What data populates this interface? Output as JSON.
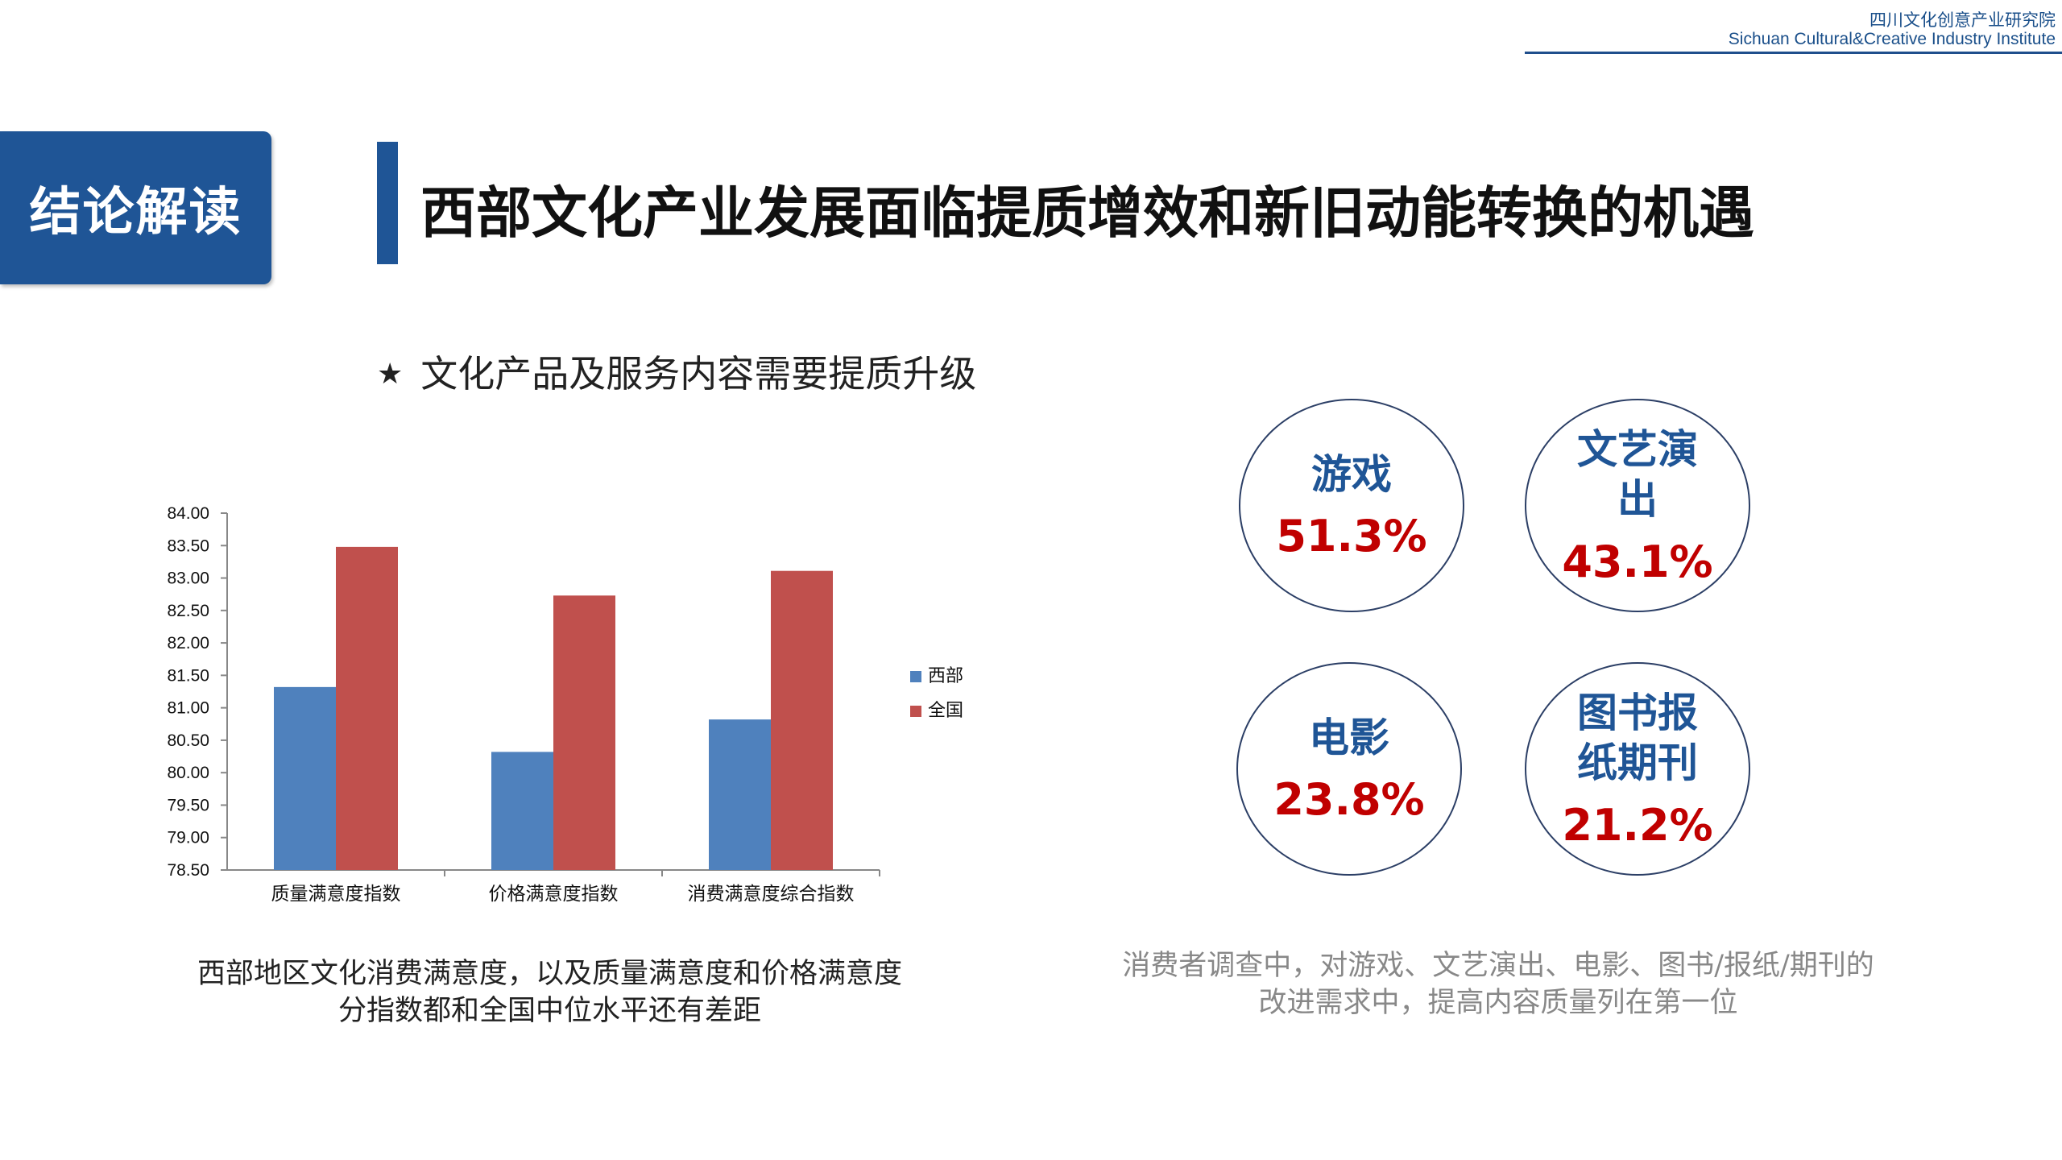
{
  "header": {
    "institute_cn": "四川文化创意产业研究院",
    "institute_en": "Sichuan Cultural&Creative Industry Institute"
  },
  "section_tag": "结论解读",
  "title": "西部文化产业发展面临提质增效和新旧动能转换的机遇",
  "subtitle": {
    "bullet": "★",
    "text": "文化产品及服务内容需要提质升级"
  },
  "chart_data": {
    "type": "bar",
    "categories": [
      "质量满意度指数",
      "价格满意度指数",
      "消费满意度综合指数"
    ],
    "series": [
      {
        "name": "西部",
        "values": [
          81.32,
          80.32,
          80.82
        ],
        "color": "#4f81bd"
      },
      {
        "name": "全国",
        "values": [
          83.48,
          82.73,
          83.11
        ],
        "color": "#c0504d"
      }
    ],
    "ylim": [
      78.5,
      84.0
    ],
    "yticks": [
      "78.50",
      "79.00",
      "79.50",
      "80.00",
      "80.50",
      "81.00",
      "81.50",
      "82.00",
      "82.50",
      "83.00",
      "83.50",
      "84.00"
    ],
    "legend_position": "right",
    "grid": false
  },
  "captions": {
    "left_line1": "西部地区文化消费满意度，以及质量满意度和价格满意度",
    "left_line2": "分指数都和全国中位水平还有差距",
    "right_line1": "消费者调查中，对游戏、文艺演出、电影、图书/报纸/期刊的",
    "right_line2": "改进需求中，提高内容质量列在第一位"
  },
  "stats": [
    {
      "label": "游戏",
      "value": "51.3%"
    },
    {
      "label": "文艺演出",
      "value": "43.1%"
    },
    {
      "label": "电影",
      "value": "23.8%"
    },
    {
      "label": "图书报纸期刊",
      "value": "21.2%"
    }
  ],
  "colors": {
    "brand_blue": "#1f5596",
    "percent_red": "#c00000"
  }
}
